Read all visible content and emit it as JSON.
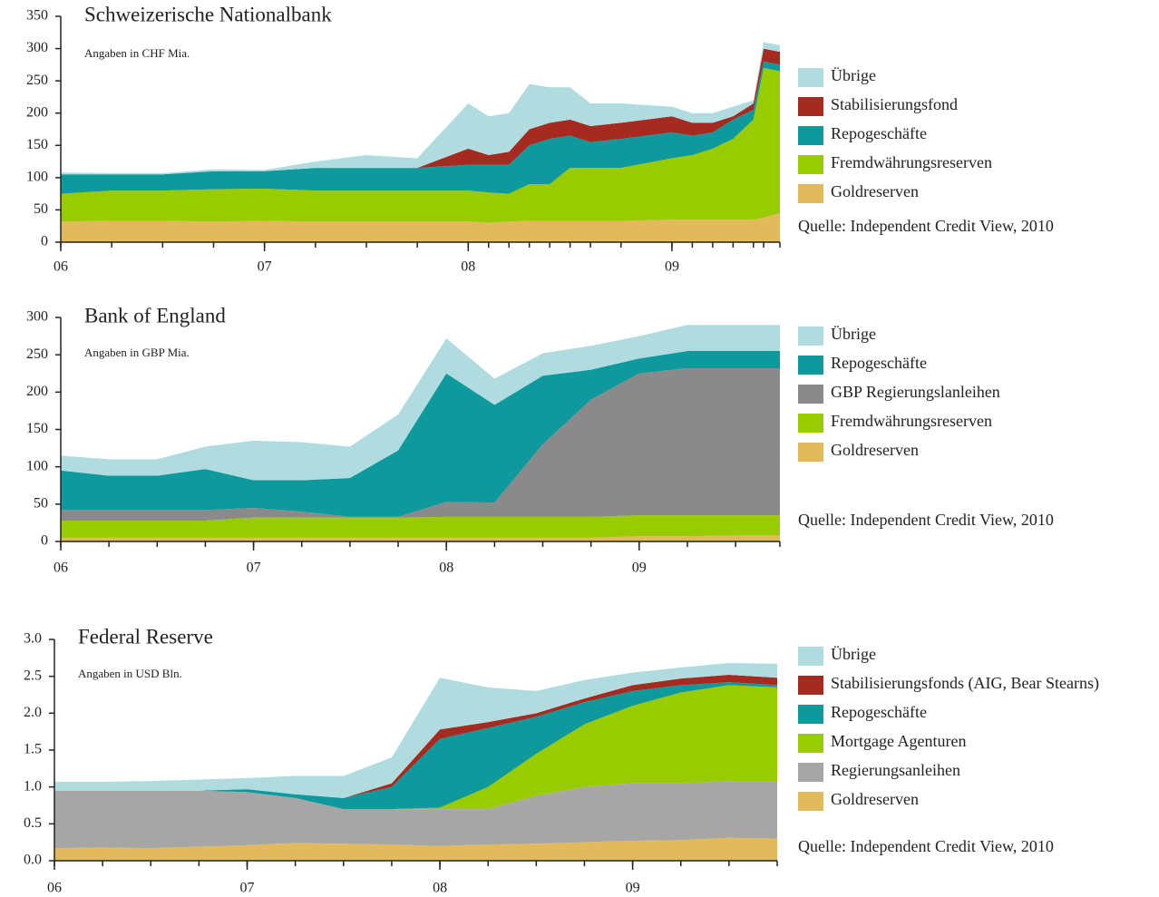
{
  "chart_data": [
    {
      "type": "area",
      "stacked": true,
      "title": "Schweizerische Nationalbank",
      "subtitle": "Angaben in CHF Mia.",
      "source": "Quelle: Independent Credit View, 2010",
      "x": [
        6.0,
        6.25,
        6.5,
        6.75,
        7.0,
        7.25,
        7.5,
        7.75,
        8.0,
        8.1,
        8.2,
        8.3,
        8.4,
        8.5,
        8.6,
        8.75,
        9.0,
        9.1,
        9.2,
        9.3,
        9.4,
        9.45,
        9.53
      ],
      "xlim": [
        6,
        9.53
      ],
      "ylim": [
        0,
        350
      ],
      "xticks": [
        {
          "value": 6,
          "label": "06"
        },
        {
          "value": 7,
          "label": "07"
        },
        {
          "value": 8,
          "label": "08"
        },
        {
          "value": 9,
          "label": "09"
        }
      ],
      "yticks": [
        0,
        50,
        100,
        150,
        200,
        250,
        300,
        350
      ],
      "series": [
        {
          "name": "Goldreserven",
          "color": "#e2ba5b",
          "values": [
            32,
            33,
            33,
            32,
            33,
            32,
            32,
            32,
            32,
            30,
            32,
            33,
            33,
            33,
            33,
            33,
            35,
            35,
            35,
            35,
            35,
            38,
            45
          ]
        },
        {
          "name": "Fremdwährungsreserven",
          "color": "#99cc00",
          "values": [
            43,
            47,
            47,
            50,
            50,
            48,
            48,
            48,
            48,
            47,
            43,
            57,
            57,
            82,
            82,
            82,
            95,
            100,
            110,
            125,
            155,
            232,
            220
          ]
        },
        {
          "name": "Repogeschäfte",
          "color": "#0e9a9c",
          "values": [
            30,
            25,
            25,
            28,
            27,
            35,
            35,
            35,
            40,
            43,
            45,
            60,
            70,
            50,
            40,
            45,
            40,
            30,
            25,
            30,
            15,
            10,
            10
          ]
        },
        {
          "name": "Stabilisierungsfond",
          "color": "#a52a1f",
          "values": [
            0,
            0,
            0,
            0,
            0,
            0,
            0,
            0,
            25,
            15,
            20,
            25,
            25,
            25,
            25,
            25,
            25,
            20,
            15,
            5,
            10,
            20,
            20
          ]
        },
        {
          "name": "Übrige",
          "color": "#b0dce0",
          "values": [
            3,
            2,
            2,
            3,
            2,
            10,
            20,
            15,
            70,
            60,
            60,
            70,
            55,
            50,
            35,
            30,
            15,
            15,
            15,
            15,
            5,
            10,
            10
          ]
        }
      ]
    },
    {
      "type": "area",
      "stacked": true,
      "title": "Bank of England",
      "subtitle": "Angaben in GBP Mia.",
      "source": "Quelle: Independent Credit View, 2010",
      "x": [
        6.0,
        6.25,
        6.5,
        6.75,
        7.0,
        7.25,
        7.5,
        7.75,
        8.0,
        8.25,
        8.5,
        8.75,
        9.0,
        9.25,
        9.5,
        9.73
      ],
      "xlim": [
        6,
        9.73
      ],
      "ylim": [
        0,
        300
      ],
      "xticks": [
        {
          "value": 6,
          "label": "06"
        },
        {
          "value": 7,
          "label": "07"
        },
        {
          "value": 8,
          "label": "08"
        },
        {
          "value": 9,
          "label": "09"
        }
      ],
      "yticks": [
        0,
        50,
        100,
        150,
        200,
        250,
        300
      ],
      "series": [
        {
          "name": "Goldreserven",
          "color": "#e2ba5b",
          "values": [
            5,
            5,
            5,
            5,
            5,
            5,
            5,
            5,
            5,
            5,
            5,
            5,
            7,
            7,
            8,
            8
          ]
        },
        {
          "name": "Fremdwährungsreserven",
          "color": "#99cc00",
          "values": [
            23,
            23,
            23,
            23,
            27,
            27,
            27,
            27,
            28,
            28,
            28,
            28,
            28,
            28,
            27,
            27
          ]
        },
        {
          "name": "GBP Regierungslanleihen",
          "color": "#8a8a8a",
          "values": [
            14,
            14,
            14,
            14,
            13,
            8,
            1,
            1,
            20,
            19,
            97,
            157,
            190,
            197,
            197,
            197
          ]
        },
        {
          "name": "Repogeschäfte",
          "color": "#0e9a9c",
          "values": [
            53,
            46,
            46,
            55,
            37,
            42,
            52,
            89,
            172,
            131,
            92,
            40,
            20,
            23,
            23,
            23
          ]
        },
        {
          "name": "Übrige",
          "color": "#b0dce0",
          "values": [
            20,
            22,
            22,
            30,
            53,
            51,
            42,
            48,
            47,
            35,
            30,
            32,
            30,
            35,
            35,
            35
          ]
        }
      ]
    },
    {
      "type": "area",
      "stacked": true,
      "title": "Federal Reserve",
      "subtitle": "Angaben in USD Bln.",
      "source": "Quelle: Independent Credit View, 2010",
      "x": [
        6.0,
        6.25,
        6.5,
        6.75,
        7.0,
        7.25,
        7.5,
        7.75,
        8.0,
        8.25,
        8.5,
        8.75,
        9.0,
        9.25,
        9.5,
        9.75
      ],
      "xlim": [
        6,
        9.75
      ],
      "ylim": [
        0,
        3
      ],
      "xticks": [
        {
          "value": 6,
          "label": "06"
        },
        {
          "value": 7,
          "label": "07"
        },
        {
          "value": 8,
          "label": "08"
        },
        {
          "value": 9,
          "label": "09"
        }
      ],
      "yticks": [
        {
          "value": 0,
          "label": "0.0"
        },
        0.5,
        {
          "value": 1,
          "label": "1.0"
        },
        1.5,
        {
          "value": 2,
          "label": "2.0"
        },
        2.5,
        {
          "value": 3,
          "label": "3.0"
        }
      ],
      "series": [
        {
          "name": "Goldreserven",
          "color": "#e2ba5b",
          "values": [
            0.17,
            0.18,
            0.17,
            0.19,
            0.21,
            0.24,
            0.23,
            0.22,
            0.2,
            0.22,
            0.23,
            0.25,
            0.27,
            0.28,
            0.31,
            0.3
          ]
        },
        {
          "name": "Regierungsanleihen",
          "color": "#a6a6a6",
          "values": [
            0.78,
            0.77,
            0.78,
            0.76,
            0.72,
            0.61,
            0.47,
            0.48,
            0.5,
            0.48,
            0.65,
            0.75,
            0.78,
            0.77,
            0.77,
            0.78
          ]
        },
        {
          "name": "Mortgage Agenturen",
          "color": "#99cc00",
          "values": [
            0,
            0,
            0,
            0,
            0,
            0,
            0,
            0,
            0.02,
            0.3,
            0.57,
            0.85,
            1.05,
            1.23,
            1.3,
            1.27
          ]
        },
        {
          "name": "Repogeschäfte",
          "color": "#0e9a9c",
          "values": [
            0,
            0,
            0,
            0,
            0.04,
            0.05,
            0.15,
            0.3,
            0.93,
            0.8,
            0.5,
            0.3,
            0.2,
            0.1,
            0.04,
            0.03
          ]
        },
        {
          "name": "Stabilisierungsfonds (AIG, Bear Stearns)",
          "color": "#a52a1f",
          "values": [
            0,
            0,
            0,
            0,
            0,
            0,
            0,
            0.05,
            0.13,
            0.08,
            0.05,
            0.05,
            0.08,
            0.09,
            0.1,
            0.1
          ]
        },
        {
          "name": "Übrige",
          "color": "#b0dce0",
          "values": [
            0.12,
            0.12,
            0.13,
            0.15,
            0.15,
            0.25,
            0.3,
            0.35,
            0.7,
            0.47,
            0.3,
            0.25,
            0.17,
            0.15,
            0.16,
            0.19
          ]
        }
      ]
    }
  ]
}
